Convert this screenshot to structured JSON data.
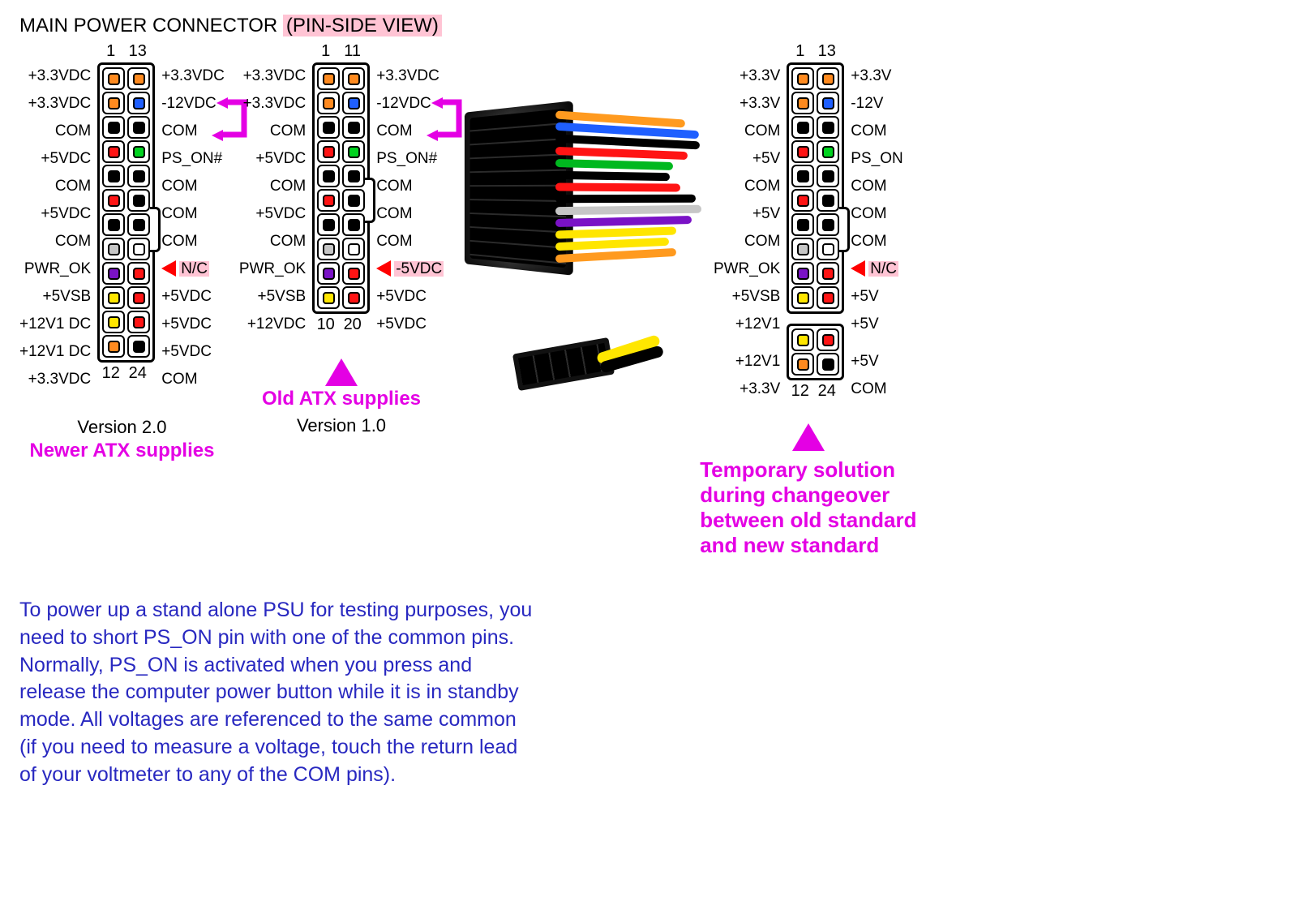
{
  "title_plain": "MAIN POWER CONNECTOR ",
  "title_hl": "(PIN-SIDE VIEW)",
  "colors": {
    "orange": "#ff8a1f",
    "blue": "#1f5fff",
    "black": "#000000",
    "red": "#ff1414",
    "green": "#00d21f",
    "grey": "#c6c6c6",
    "white": "#ffffff",
    "purple": "#7a12c6",
    "yellow": "#ffe600",
    "magenta": "#e400e4",
    "pink_hl": "#ffc4d4",
    "txt_blue": "#2828c0"
  },
  "connector_v20": {
    "top_nums": [
      "1",
      "13"
    ],
    "bottom_nums": [
      "12",
      "24"
    ],
    "version": "Version 2.0",
    "caption": "Newer ATX supplies",
    "clip_after_row": 5,
    "rows": [
      {
        "l": "+3.3VDC",
        "cL": "orange",
        "cR": "orange",
        "r": "+3.3VDC"
      },
      {
        "l": "+3.3VDC",
        "cL": "orange",
        "cR": "blue",
        "r": "-12VDC"
      },
      {
        "l": "COM",
        "cL": "black",
        "cR": "black",
        "r": "COM",
        "ps_arrow": true
      },
      {
        "l": "+5VDC",
        "cL": "red",
        "cR": "green",
        "r": "PS_ON#"
      },
      {
        "l": "COM",
        "cL": "black",
        "cR": "black",
        "r": "COM"
      },
      {
        "l": "+5VDC",
        "cL": "red",
        "cR": "black",
        "r": "COM"
      },
      {
        "l": "COM",
        "cL": "black",
        "cR": "black",
        "r": "COM"
      },
      {
        "l": "PWR_OK",
        "cL": "grey",
        "cR": "white",
        "r": "N/C",
        "r_hl": true,
        "r_arrow": true
      },
      {
        "l": "+5VSB",
        "cL": "purple",
        "cR": "red",
        "r": "+5VDC"
      },
      {
        "l": "+12V1 DC",
        "cL": "yellow",
        "cR": "red",
        "r": "+5VDC"
      },
      {
        "l": "+12V1 DC",
        "cL": "yellow",
        "cR": "red",
        "r": "+5VDC"
      },
      {
        "l": "+3.3VDC",
        "cL": "orange",
        "cR": "black",
        "r": "COM"
      }
    ]
  },
  "connector_v10": {
    "top_nums": [
      "1",
      "11"
    ],
    "bottom_nums": [
      "10",
      "20"
    ],
    "version": "Version 1.0",
    "caption": "Old ATX supplies",
    "clip_after_row": 4,
    "rows": [
      {
        "l": "+3.3VDC",
        "cL": "orange",
        "cR": "orange",
        "r": "+3.3VDC"
      },
      {
        "l": "+3.3VDC",
        "cL": "orange",
        "cR": "blue",
        "r": "-12VDC"
      },
      {
        "l": "COM",
        "cL": "black",
        "cR": "black",
        "r": "COM",
        "ps_arrow": true
      },
      {
        "l": "+5VDC",
        "cL": "red",
        "cR": "green",
        "r": "PS_ON#"
      },
      {
        "l": "COM",
        "cL": "black",
        "cR": "black",
        "r": "COM"
      },
      {
        "l": "+5VDC",
        "cL": "red",
        "cR": "black",
        "r": "COM"
      },
      {
        "l": "COM",
        "cL": "black",
        "cR": "black",
        "r": "COM"
      },
      {
        "l": "PWR_OK",
        "cL": "grey",
        "cR": "white",
        "r": "-5VDC",
        "r_hl": true,
        "r_arrow": true
      },
      {
        "l": "+5VSB",
        "cL": "purple",
        "cR": "red",
        "r": "+5VDC"
      },
      {
        "l": "+12VDC",
        "cL": "yellow",
        "cR": "red",
        "r": "+5VDC"
      }
    ]
  },
  "connector_split": {
    "top_nums": [
      "1",
      "13"
    ],
    "bottom_nums": [
      "12",
      "24"
    ],
    "caption_lines": [
      "Temporary solution",
      "during changeover",
      "between old standard",
      "and new standard"
    ],
    "clip_after_row": 5,
    "main_rows": [
      {
        "l": "+3.3V",
        "cL": "orange",
        "cR": "orange",
        "r": "+3.3V"
      },
      {
        "l": "+3.3V",
        "cL": "orange",
        "cR": "blue",
        "r": "-12V"
      },
      {
        "l": "COM",
        "cL": "black",
        "cR": "black",
        "r": "COM"
      },
      {
        "l": "+5V",
        "cL": "red",
        "cR": "green",
        "r": "PS_ON"
      },
      {
        "l": "COM",
        "cL": "black",
        "cR": "black",
        "r": "COM"
      },
      {
        "l": "+5V",
        "cL": "red",
        "cR": "black",
        "r": "COM"
      },
      {
        "l": "COM",
        "cL": "black",
        "cR": "black",
        "r": "COM"
      },
      {
        "l": "PWR_OK",
        "cL": "grey",
        "cR": "white",
        "r": "N/C",
        "r_hl": true,
        "r_arrow": true
      },
      {
        "l": "+5VSB",
        "cL": "purple",
        "cR": "red",
        "r": "+5V"
      },
      {
        "l": "+12V1",
        "cL": "yellow",
        "cR": "red",
        "r": "+5V"
      }
    ],
    "ext_rows": [
      {
        "l": "+12V1",
        "cL": "yellow",
        "cR": "red",
        "r": "+5V"
      },
      {
        "l": "+3.3V",
        "cL": "orange",
        "cR": "black",
        "r": "COM"
      }
    ]
  },
  "explain": "To power up a stand alone PSU for testing purposes, you need to short PS_ON pin with one of the common pins. Normally, PS_ON is activated when you press and release the computer power button while it is in standby mode. All voltages are referenced to the same common (if you need to measure a voltage, touch the return lead of your voltmeter to any of the COM pins).",
  "cable_wire_colors": [
    "#ff9a1f",
    "#1f5fff",
    "#000",
    "#ff1414",
    "#00b81f",
    "#000",
    "#ff1414",
    "#000",
    "#c6c6c6",
    "#7a12c6",
    "#ffe600",
    "#ffe600",
    "#ff9a1f"
  ]
}
